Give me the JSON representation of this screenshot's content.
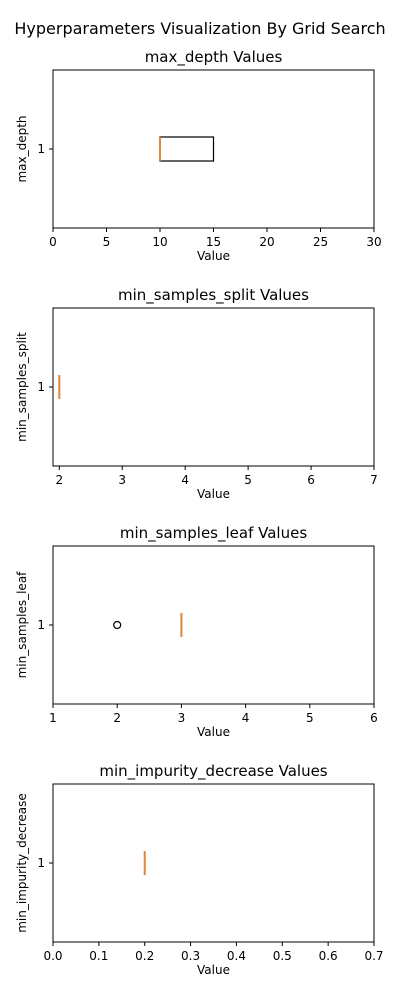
{
  "figure": {
    "suptitle": "Hyperparameters Visualization By Grid Search"
  },
  "chart_data": [
    {
      "type": "boxplot",
      "title": "max_depth Values",
      "xlabel": "Value",
      "ylabel": "max_depth",
      "xlim": [
        0,
        30
      ],
      "xticks": [
        0,
        5,
        10,
        15,
        20,
        25,
        30
      ],
      "ytick": "1",
      "box": {
        "min": 10,
        "q1": 10,
        "median": 10,
        "q3": 15,
        "max": 15
      },
      "outliers": []
    },
    {
      "type": "boxplot",
      "title": "min_samples_split Values",
      "xlabel": "Value",
      "ylabel": "min_samples_split",
      "xlim": [
        1.9,
        7
      ],
      "xticks": [
        2,
        3,
        4,
        5,
        6,
        7
      ],
      "ytick": "1",
      "box": {
        "min": 2,
        "q1": 2,
        "median": 2,
        "q3": 2,
        "max": 2
      },
      "outliers": []
    },
    {
      "type": "boxplot",
      "title": "min_samples_leaf Values",
      "xlabel": "Value",
      "ylabel": "min_samples_leaf",
      "xlim": [
        1,
        6
      ],
      "xticks": [
        1,
        2,
        3,
        4,
        5,
        6
      ],
      "ytick": "1",
      "box": {
        "min": 3,
        "q1": 3,
        "median": 3,
        "q3": 3,
        "max": 3
      },
      "outliers": [
        2
      ]
    },
    {
      "type": "boxplot",
      "title": "min_impurity_decrease Values",
      "xlabel": "Value",
      "ylabel": "min_impurity_decrease",
      "xlim": [
        0,
        0.7
      ],
      "xticks": [
        0.0,
        0.1,
        0.2,
        0.3,
        0.4,
        0.5,
        0.6,
        0.7
      ],
      "xtick_decimals": 1,
      "ytick": "1",
      "box": {
        "min": 0.2,
        "q1": 0.2,
        "median": 0.2,
        "q3": 0.2,
        "max": 0.2
      },
      "outliers": []
    }
  ],
  "colors": {
    "median": "#e0853a",
    "box": "#000000",
    "axes": "#000000"
  }
}
